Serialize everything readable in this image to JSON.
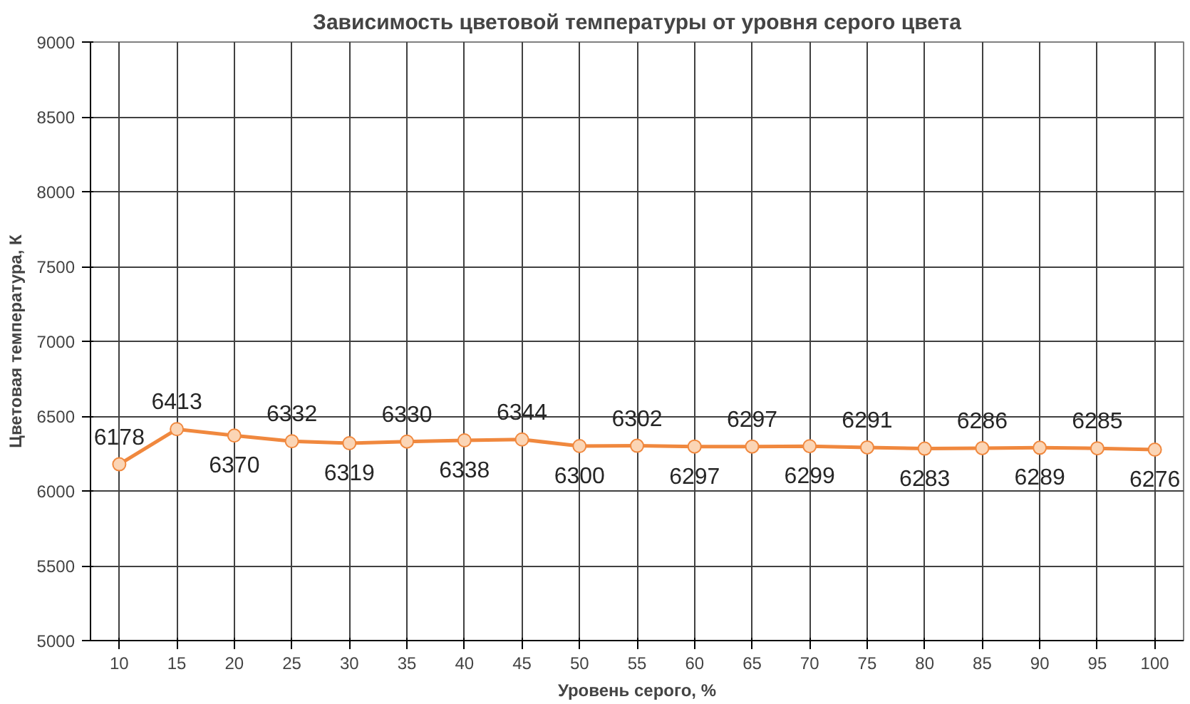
{
  "chart_data": {
    "type": "line",
    "title": "Зависимость цветовой температуры от уровня серого цвета",
    "xlabel": "Уровень серого, %",
    "ylabel": "Цветовая температура, К",
    "categories": [
      "10",
      "15",
      "20",
      "25",
      "30",
      "35",
      "40",
      "45",
      "50",
      "55",
      "60",
      "65",
      "70",
      "75",
      "80",
      "85",
      "90",
      "95",
      "100"
    ],
    "series": [
      {
        "color": "#f0883e",
        "values": [
          6178,
          6413,
          6370,
          6332,
          6319,
          6330,
          6338,
          6344,
          6300,
          6302,
          6297,
          6297,
          6299,
          6291,
          6283,
          6286,
          6289,
          6285,
          6276
        ]
      }
    ],
    "ylim": [
      5000,
      9000
    ],
    "yticks": [
      5000,
      5500,
      6000,
      6500,
      7000,
      7500,
      8000,
      8500,
      9000
    ],
    "grid": true,
    "marker": "circle",
    "data_labels": true,
    "line_style": "solid"
  }
}
